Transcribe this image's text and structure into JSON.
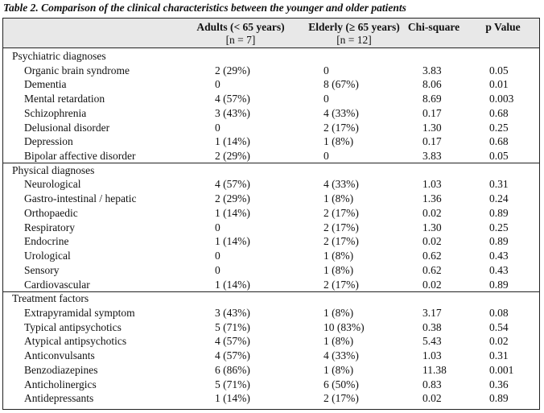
{
  "caption": "Table 2. Comparison of the clinical characteristics between the younger and older patients",
  "header": {
    "adults_line1": "Adults (< 65 years)",
    "adults_line2": "[n = 7]",
    "elderly_line1": "Elderly (≥ 65 years)",
    "elderly_line2": "[n = 12]",
    "chi": "Chi-square",
    "p": "p Value"
  },
  "sections": [
    {
      "title": "Psychiatric diagnoses",
      "rows": [
        {
          "name": "Organic brain syndrome",
          "adults": "2 (29%)",
          "elderly": "0",
          "chi": "3.83",
          "p": "0.05"
        },
        {
          "name": "Dementia",
          "adults": "0",
          "elderly": "8 (67%)",
          "chi": "8.06",
          "p": "0.01"
        },
        {
          "name": "Mental retardation",
          "adults": "4 (57%)",
          "elderly": "0",
          "chi": "8.69",
          "p": "0.003"
        },
        {
          "name": "Schizophrenia",
          "adults": "3 (43%)",
          "elderly": "4 (33%)",
          "chi": "0.17",
          "p": "0.68"
        },
        {
          "name": "Delusional disorder",
          "adults": "0",
          "elderly": "2 (17%)",
          "chi": "1.30",
          "p": "0.25"
        },
        {
          "name": "Depression",
          "adults": "1 (14%)",
          "elderly": "1 (8%)",
          "chi": "0.17",
          "p": "0.68"
        },
        {
          "name": "Bipolar affective disorder",
          "adults": "2 (29%)",
          "elderly": "0",
          "chi": "3.83",
          "p": "0.05"
        }
      ]
    },
    {
      "title": "Physical diagnoses",
      "rows": [
        {
          "name": "Neurological",
          "adults": "4 (57%)",
          "elderly": "4 (33%)",
          "chi": "1.03",
          "p": "0.31"
        },
        {
          "name": "Gastro-intestinal / hepatic",
          "adults": "2 (29%)",
          "elderly": "1 (8%)",
          "chi": "1.36",
          "p": "0.24"
        },
        {
          "name": "Orthopaedic",
          "adults": "1 (14%)",
          "elderly": "2 (17%)",
          "chi": "0.02",
          "p": "0.89"
        },
        {
          "name": "Respiratory",
          "adults": "0",
          "elderly": "2 (17%)",
          "chi": "1.30",
          "p": "0.25"
        },
        {
          "name": "Endocrine",
          "adults": "1 (14%)",
          "elderly": "2 (17%)",
          "chi": "0.02",
          "p": "0.89"
        },
        {
          "name": "Urological",
          "adults": "0",
          "elderly": "1 (8%)",
          "chi": "0.62",
          "p": "0.43"
        },
        {
          "name": "Sensory",
          "adults": "0",
          "elderly": "1 (8%)",
          "chi": "0.62",
          "p": "0.43"
        },
        {
          "name": "Cardiovascular",
          "adults": "1 (14%)",
          "elderly": "2 (17%)",
          "chi": "0.02",
          "p": "0.89"
        }
      ]
    },
    {
      "title": "Treatment factors",
      "rows": [
        {
          "name": "Extrapyramidal symptom",
          "adults": "3 (43%)",
          "elderly": "1 (8%)",
          "chi": "3.17",
          "p": "0.08"
        },
        {
          "name": "Typical antipsychotics",
          "adults": "5 (71%)",
          "elderly": "10 (83%)",
          "chi": "0.38",
          "p": "0.54"
        },
        {
          "name": "Atypical antipsychotics",
          "adults": "4 (57%)",
          "elderly": "1 (8%)",
          "chi": "5.43",
          "p": "0.02"
        },
        {
          "name": "Anticonvulsants",
          "adults": "4 (57%)",
          "elderly": "4 (33%)",
          "chi": "1.03",
          "p": "0.31"
        },
        {
          "name": "Benzodiazepines",
          "adults": "6 (86%)",
          "elderly": "1 (8%)",
          "chi": "11.38",
          "p": "0.001"
        },
        {
          "name": "Anticholinergics",
          "adults": "5 (71%)",
          "elderly": "6 (50%)",
          "chi": "0.83",
          "p": "0.36"
        },
        {
          "name": "Antidepressants",
          "adults": "1 (14%)",
          "elderly": "2 (17%)",
          "chi": "0.02",
          "p": "0.89"
        }
      ]
    }
  ]
}
